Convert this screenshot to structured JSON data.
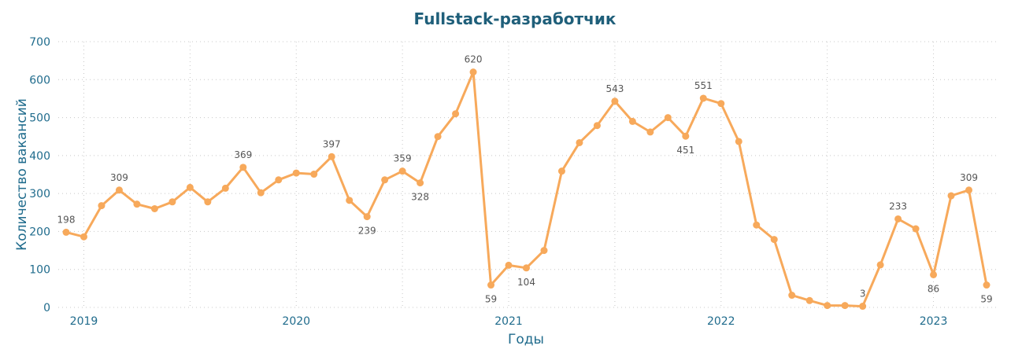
{
  "chart_data": {
    "type": "line",
    "title": "Fullstack-разработчик",
    "xlabel": "Годы",
    "ylabel": "Количество вакансий",
    "ylim": [
      0,
      700
    ],
    "y_ticks": [
      "0",
      "100",
      "200",
      "300",
      "400",
      "500",
      "600",
      "700"
    ],
    "x_ticks": [
      {
        "label": "2019",
        "at": 1
      },
      {
        "label": "2020",
        "at": 13
      },
      {
        "label": "2021",
        "at": 25
      },
      {
        "label": "2022",
        "at": 37
      },
      {
        "label": "2023",
        "at": 49
      }
    ],
    "grid": true,
    "line_color": "#f7a95b",
    "series": [
      {
        "values": [
          198,
          186,
          268,
          309,
          272,
          260,
          278,
          316,
          278,
          314,
          369,
          302,
          336,
          354,
          351,
          397,
          282,
          239,
          336,
          359,
          328,
          450,
          510,
          620,
          59,
          111,
          104,
          150,
          359,
          434,
          479,
          543,
          490,
          462,
          500,
          451,
          551,
          537,
          437,
          217,
          179,
          32,
          18,
          5,
          5,
          3,
          112,
          233,
          207,
          86,
          294,
          309,
          59
        ],
        "labels": [
          {
            "i": 0,
            "text": "198",
            "pos": "above"
          },
          {
            "i": 3,
            "text": "309",
            "pos": "above"
          },
          {
            "i": 10,
            "text": "369",
            "pos": "above"
          },
          {
            "i": 15,
            "text": "397",
            "pos": "above"
          },
          {
            "i": 17,
            "text": "239",
            "pos": "below"
          },
          {
            "i": 19,
            "text": "359",
            "pos": "above"
          },
          {
            "i": 20,
            "text": "328",
            "pos": "below"
          },
          {
            "i": 23,
            "text": "620",
            "pos": "above"
          },
          {
            "i": 24,
            "text": "59",
            "pos": "below"
          },
          {
            "i": 26,
            "text": "104",
            "pos": "below"
          },
          {
            "i": 31,
            "text": "543",
            "pos": "above"
          },
          {
            "i": 35,
            "text": "451",
            "pos": "below"
          },
          {
            "i": 36,
            "text": "551",
            "pos": "above"
          },
          {
            "i": 45,
            "text": "3",
            "pos": "above"
          },
          {
            "i": 47,
            "text": "233",
            "pos": "above"
          },
          {
            "i": 49,
            "text": "86",
            "pos": "below"
          },
          {
            "i": 51,
            "text": "309",
            "pos": "above"
          },
          {
            "i": 52,
            "text": "59",
            "pos": "below"
          }
        ]
      }
    ]
  }
}
